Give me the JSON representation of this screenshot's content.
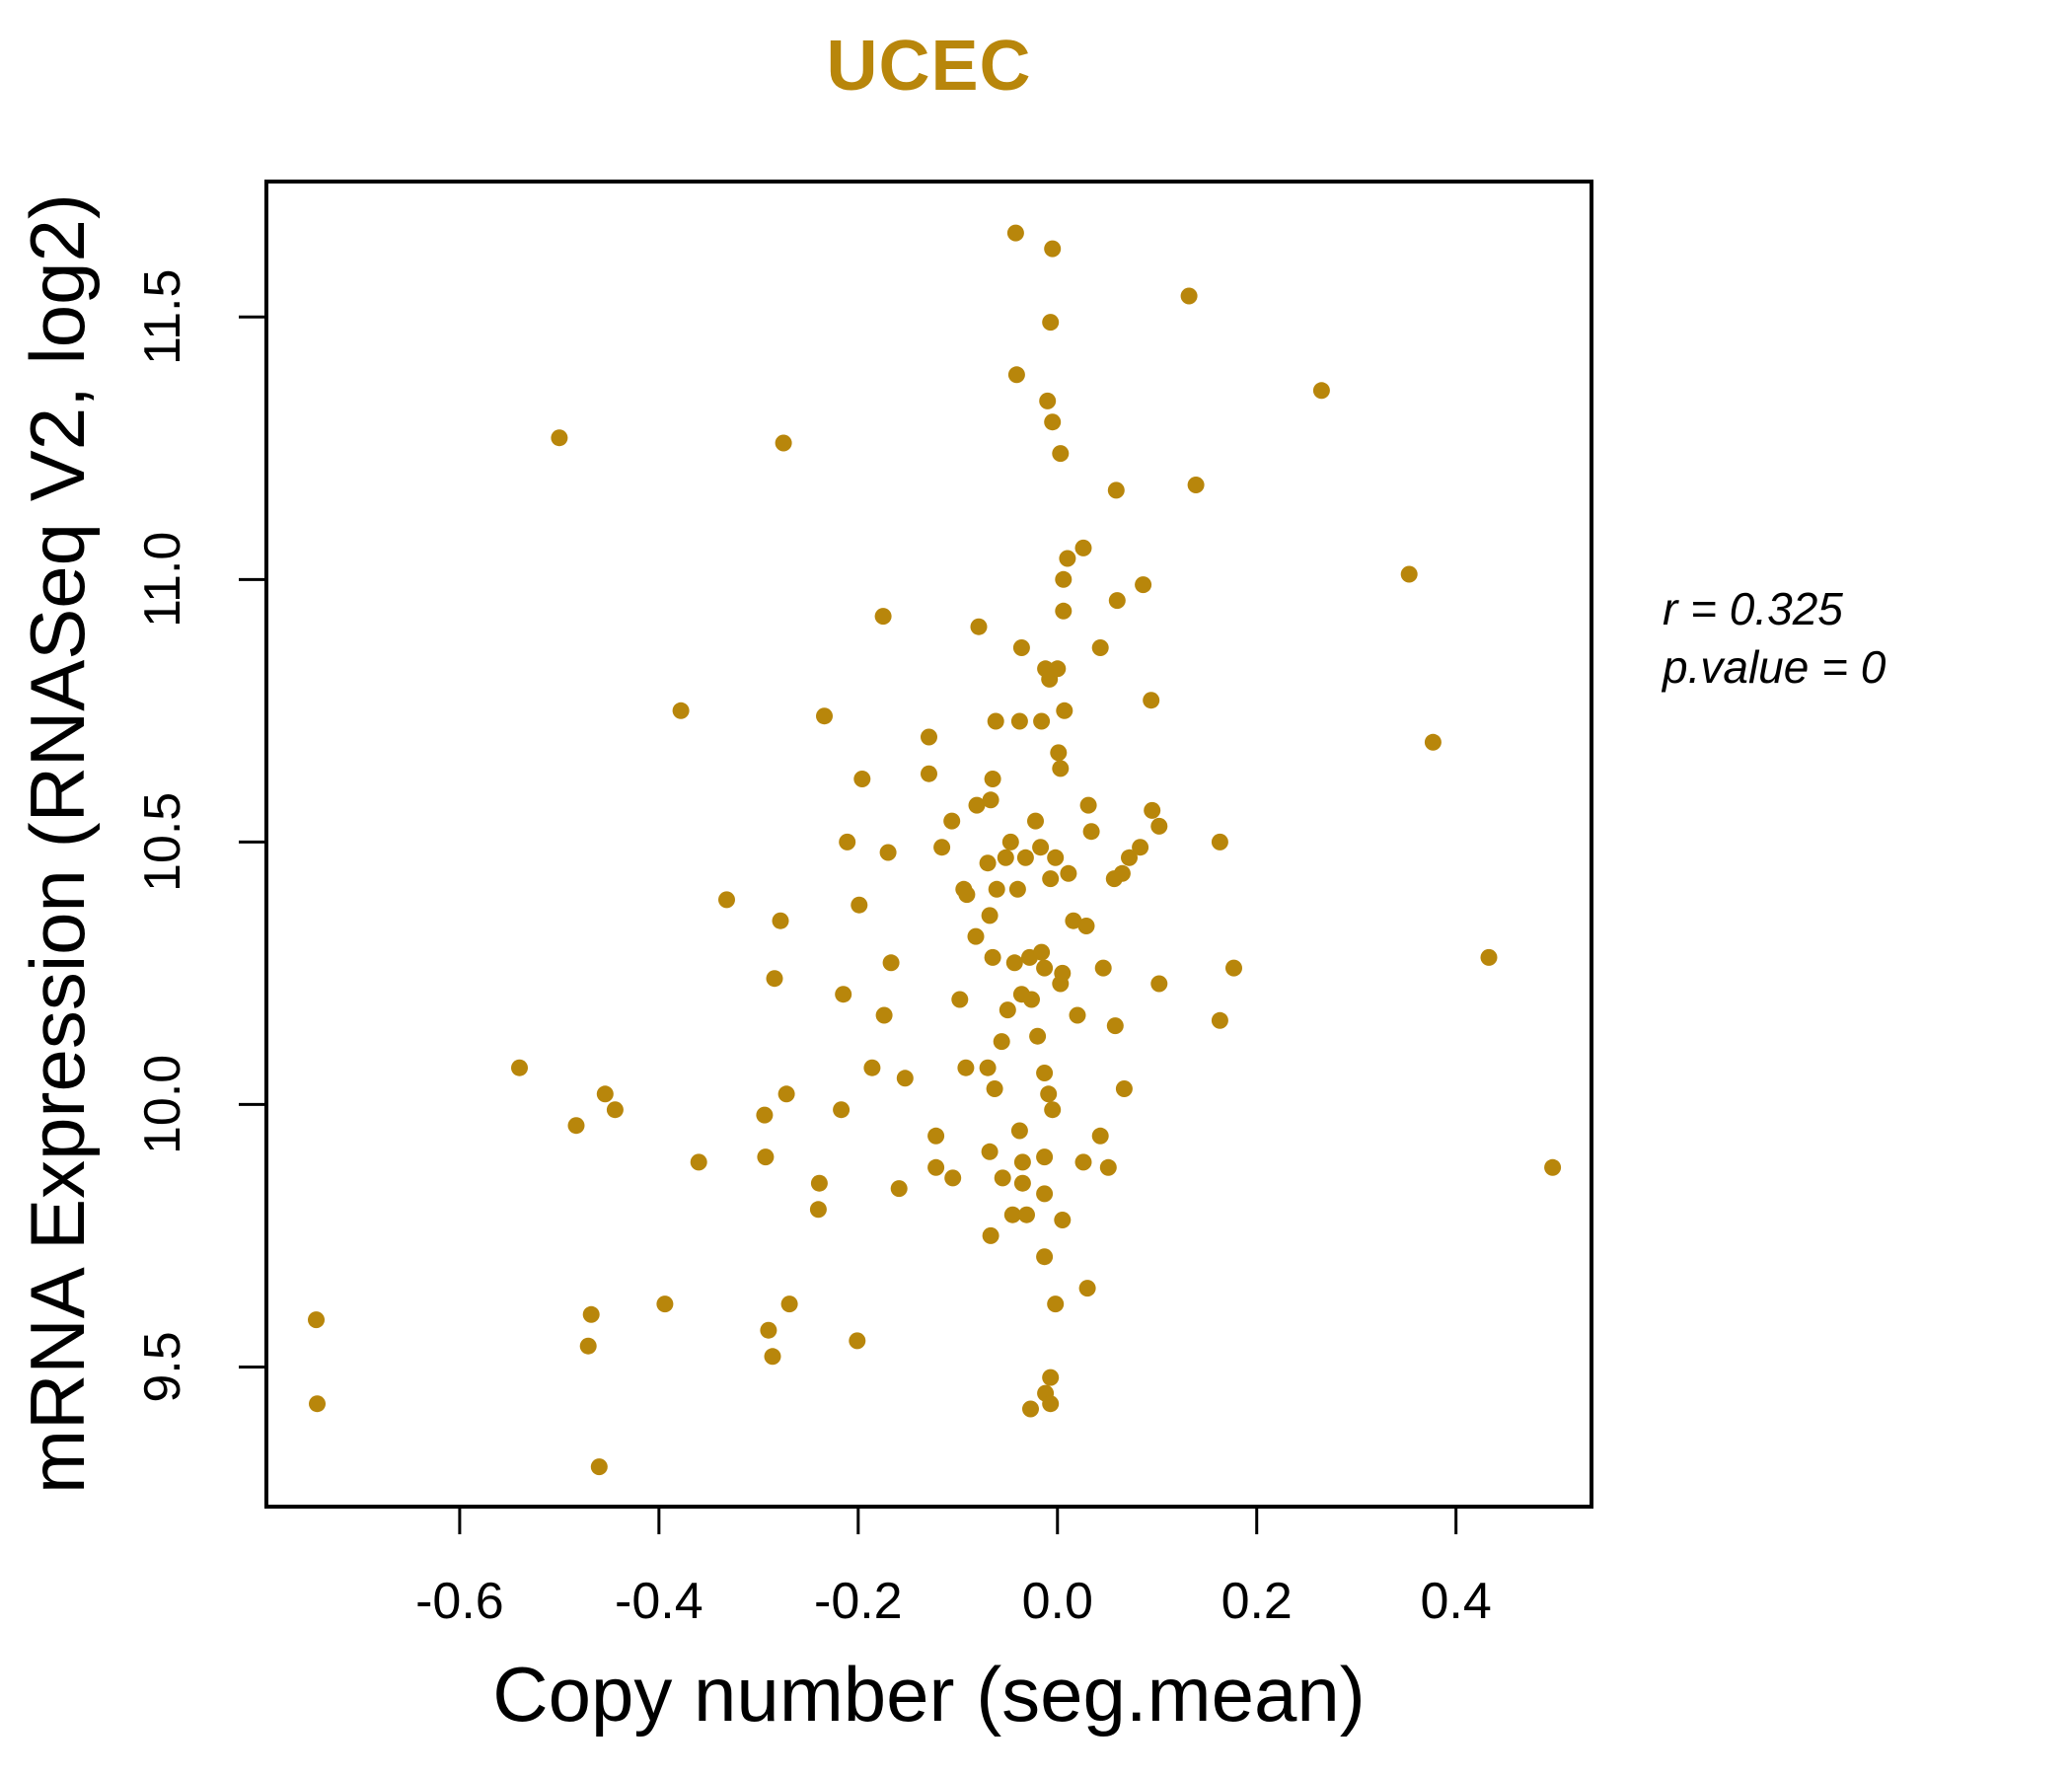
{
  "figure": {
    "title": "UCEC",
    "x_axis_label": "Copy number (seg.mean)",
    "y_axis_label": "mRNA Expression (RNASeq V2, log2)",
    "annotation": {
      "line1": "r = 0.325",
      "line2": "p.value = 0"
    },
    "colors": {
      "accent": "#B8860B",
      "point": "#B8860B",
      "axis": "#000000",
      "background": "#FFFFFF"
    }
  },
  "chart_data": {
    "type": "scatter",
    "title": "UCEC",
    "xlabel": "Copy number (seg.mean)",
    "ylabel": "mRNA Expression (RNASeq V2, log2)",
    "xlim": [
      -0.794,
      0.536
    ],
    "ylim": [
      9.234,
      11.758
    ],
    "x_ticks": [
      -0.6,
      -0.4,
      -0.2,
      0.0,
      0.2,
      0.4
    ],
    "x_tick_labels": [
      "-0.6",
      "-0.4",
      "-0.2",
      "0.0",
      "0.2",
      "0.4"
    ],
    "y_ticks": [
      9.5,
      10.0,
      10.5,
      11.0,
      11.5
    ],
    "y_tick_labels": [
      "9.5",
      "10.0",
      "10.5",
      "11.0",
      "11.5"
    ],
    "grid": false,
    "legend": null,
    "correlation_r": 0.325,
    "p_value": 0,
    "point_color": "#B8860B",
    "point_radius": 8.5,
    "points": [
      [
        -0.744,
        9.59
      ],
      [
        -0.743,
        9.43
      ],
      [
        -0.54,
        10.07
      ],
      [
        -0.5,
        11.27
      ],
      [
        -0.483,
        9.96
      ],
      [
        -0.471,
        9.54
      ],
      [
        -0.468,
        9.6
      ],
      [
        -0.46,
        9.31
      ],
      [
        -0.454,
        10.02
      ],
      [
        -0.444,
        9.99
      ],
      [
        -0.394,
        9.62
      ],
      [
        -0.378,
        10.75
      ],
      [
        -0.36,
        9.89
      ],
      [
        -0.332,
        10.39
      ],
      [
        -0.294,
        9.98
      ],
      [
        -0.293,
        9.9
      ],
      [
        -0.29,
        9.57
      ],
      [
        -0.286,
        9.52
      ],
      [
        -0.284,
        10.24
      ],
      [
        -0.278,
        10.35
      ],
      [
        -0.275,
        11.26
      ],
      [
        -0.272,
        10.02
      ],
      [
        -0.269,
        9.62
      ],
      [
        -0.24,
        9.8
      ],
      [
        -0.239,
        9.85
      ],
      [
        -0.234,
        10.74
      ],
      [
        -0.217,
        9.99
      ],
      [
        -0.215,
        10.21
      ],
      [
        -0.211,
        10.5
      ],
      [
        -0.201,
        9.55
      ],
      [
        -0.199,
        10.38
      ],
      [
        -0.196,
        10.62
      ],
      [
        -0.186,
        10.07
      ],
      [
        -0.175,
        10.93
      ],
      [
        -0.174,
        10.17
      ],
      [
        -0.17,
        10.48
      ],
      [
        -0.167,
        10.27
      ],
      [
        -0.159,
        9.84
      ],
      [
        -0.153,
        10.05
      ],
      [
        -0.129,
        10.7
      ],
      [
        -0.129,
        10.63
      ],
      [
        -0.122,
        9.94
      ],
      [
        -0.122,
        9.88
      ],
      [
        -0.116,
        10.49
      ],
      [
        -0.106,
        10.54
      ],
      [
        -0.105,
        9.86
      ],
      [
        -0.098,
        10.2
      ],
      [
        -0.094,
        10.41
      ],
      [
        -0.092,
        10.07
      ],
      [
        -0.091,
        10.4
      ],
      [
        -0.082,
        10.32
      ],
      [
        -0.081,
        10.57
      ],
      [
        -0.079,
        10.91
      ],
      [
        -0.07,
        10.46
      ],
      [
        -0.07,
        10.07
      ],
      [
        -0.068,
        10.36
      ],
      [
        -0.068,
        9.91
      ],
      [
        -0.067,
        10.58
      ],
      [
        -0.067,
        9.75
      ],
      [
        -0.065,
        10.62
      ],
      [
        -0.065,
        10.28
      ],
      [
        -0.063,
        10.03
      ],
      [
        -0.062,
        10.73
      ],
      [
        -0.061,
        10.41
      ],
      [
        -0.056,
        10.12
      ],
      [
        -0.055,
        9.86
      ],
      [
        -0.052,
        10.47
      ],
      [
        -0.05,
        10.18
      ],
      [
        -0.047,
        10.5
      ],
      [
        -0.045,
        9.79
      ],
      [
        -0.043,
        10.27
      ],
      [
        -0.042,
        11.66
      ],
      [
        -0.041,
        11.39
      ],
      [
        -0.04,
        10.41
      ],
      [
        -0.038,
        10.73
      ],
      [
        -0.038,
        9.95
      ],
      [
        -0.036,
        10.87
      ],
      [
        -0.036,
        10.21
      ],
      [
        -0.035,
        9.89
      ],
      [
        -0.035,
        9.85
      ],
      [
        -0.032,
        10.47
      ],
      [
        -0.031,
        9.79
      ],
      [
        -0.028,
        10.28
      ],
      [
        -0.027,
        9.42
      ],
      [
        -0.026,
        10.2
      ],
      [
        -0.022,
        10.54
      ],
      [
        -0.02,
        10.13
      ],
      [
        -0.017,
        10.49
      ],
      [
        -0.016,
        10.73
      ],
      [
        -0.016,
        10.29
      ],
      [
        -0.013,
        10.26
      ],
      [
        -0.013,
        10.06
      ],
      [
        -0.013,
        9.9
      ],
      [
        -0.013,
        9.83
      ],
      [
        -0.013,
        9.71
      ],
      [
        -0.012,
        10.83
      ],
      [
        -0.012,
        9.45
      ],
      [
        -0.01,
        11.34
      ],
      [
        -0.009,
        10.02
      ],
      [
        -0.008,
        10.81
      ],
      [
        -0.007,
        11.49
      ],
      [
        -0.007,
        10.43
      ],
      [
        -0.007,
        9.48
      ],
      [
        -0.007,
        9.43
      ],
      [
        -0.005,
        11.63
      ],
      [
        -0.005,
        11.3
      ],
      [
        -0.005,
        9.99
      ],
      [
        -0.002,
        10.47
      ],
      [
        -0.002,
        9.62
      ],
      [
        0.0,
        10.83
      ],
      [
        0.001,
        10.67
      ],
      [
        0.003,
        11.24
      ],
      [
        0.003,
        10.64
      ],
      [
        0.003,
        10.23
      ],
      [
        0.005,
        10.25
      ],
      [
        0.005,
        9.78
      ],
      [
        0.006,
        11.0
      ],
      [
        0.006,
        10.94
      ],
      [
        0.007,
        10.75
      ],
      [
        0.01,
        11.04
      ],
      [
        0.011,
        10.44
      ],
      [
        0.016,
        10.35
      ],
      [
        0.02,
        10.17
      ],
      [
        0.026,
        11.06
      ],
      [
        0.026,
        9.89
      ],
      [
        0.029,
        10.34
      ],
      [
        0.03,
        9.65
      ],
      [
        0.031,
        10.57
      ],
      [
        0.034,
        10.52
      ],
      [
        0.043,
        10.87
      ],
      [
        0.043,
        9.94
      ],
      [
        0.046,
        10.26
      ],
      [
        0.051,
        9.88
      ],
      [
        0.057,
        10.43
      ],
      [
        0.058,
        10.15
      ],
      [
        0.059,
        11.17
      ],
      [
        0.06,
        10.96
      ],
      [
        0.065,
        10.44
      ],
      [
        0.067,
        10.03
      ],
      [
        0.072,
        10.47
      ],
      [
        0.083,
        10.49
      ],
      [
        0.086,
        10.99
      ],
      [
        0.094,
        10.77
      ],
      [
        0.095,
        10.56
      ],
      [
        0.102,
        10.53
      ],
      [
        0.102,
        10.23
      ],
      [
        0.132,
        11.54
      ],
      [
        0.139,
        11.18
      ],
      [
        0.163,
        10.5
      ],
      [
        0.163,
        10.16
      ],
      [
        0.177,
        10.26
      ],
      [
        0.265,
        11.36
      ],
      [
        0.353,
        11.01
      ],
      [
        0.377,
        10.69
      ],
      [
        0.433,
        10.28
      ],
      [
        0.497,
        9.88
      ]
    ]
  }
}
